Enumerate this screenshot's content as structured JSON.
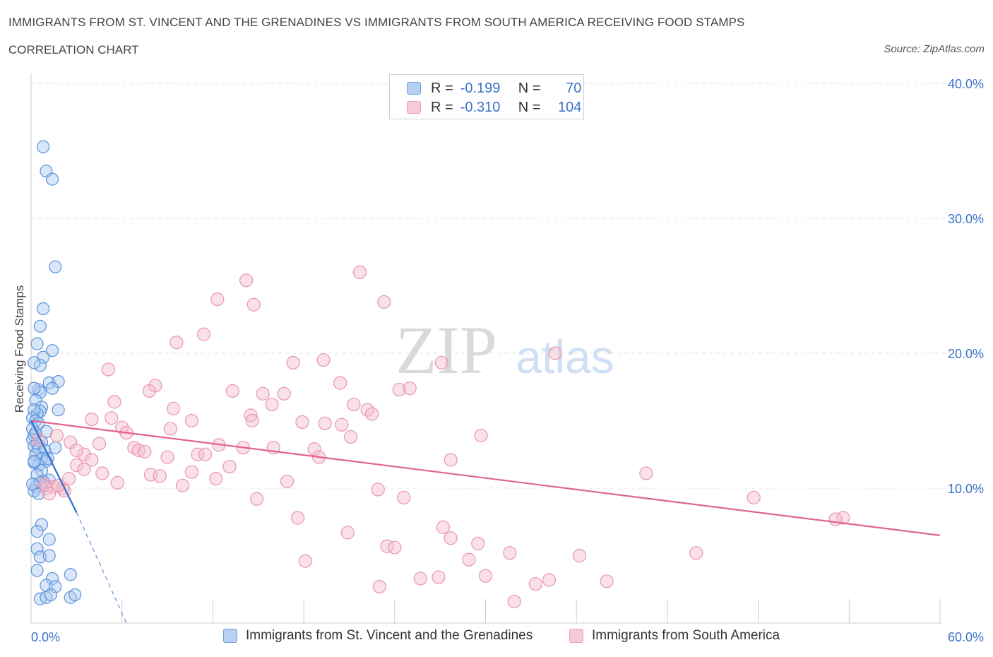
{
  "header": {
    "title": "IMMIGRANTS FROM ST. VINCENT AND THE GRENADINES VS IMMIGRANTS FROM SOUTH AMERICA RECEIVING FOOD STAMPS",
    "subtitle": "CORRELATION CHART",
    "source": "Source: ZipAtlas.com"
  },
  "legend_top": {
    "rows": [
      {
        "r_label": "R =",
        "r_value": "-0.199",
        "n_label": "N =",
        "n_value": "70"
      },
      {
        "r_label": "R =",
        "r_value": "-0.310",
        "n_label": "N =",
        "n_value": "104"
      }
    ]
  },
  "watermark": {
    "zip": "ZIP",
    "atlas": "atlas"
  },
  "colors": {
    "blue_fill": "#a9c8f0",
    "blue_stroke": "#5b93d9",
    "blue_line": "#2f6fce",
    "pink_fill": "#f5bccd",
    "pink_stroke": "#e895b0",
    "pink_line": "#e0648f",
    "axis_label": "#3a73c8",
    "grid": "#e3e3e3"
  },
  "chart_data": {
    "type": "scatter",
    "title": "IMMIGRANTS FROM ST. VINCENT AND THE GRENADINES VS IMMIGRANTS FROM SOUTH AMERICA RECEIVING FOOD STAMPS",
    "ylabel": "Receiving Food Stamps",
    "xlim": [
      0,
      60
    ],
    "ylim": [
      0,
      40
    ],
    "x_tick_labels": [
      "0.0%",
      "60.0%"
    ],
    "y_ticks": [
      10,
      20,
      30,
      40
    ],
    "y_tick_labels": [
      "10.0%",
      "20.0%",
      "30.0%",
      "40.0%"
    ],
    "grid": "horizontal dashed",
    "legend_position": "top-center and bottom",
    "series": [
      {
        "name": "Immigrants from St. Vincent and the Grenadines",
        "color": "#5b93d9",
        "R": -0.199,
        "N": 70,
        "trend": {
          "x": [
            0,
            3
          ],
          "y": [
            15.0,
            8.2
          ],
          "dashed_extension": {
            "x": [
              3,
              6.3
            ],
            "y": [
              8.2,
              0
            ]
          }
        },
        "points": [
          [
            0.8,
            35.3
          ],
          [
            1.0,
            33.5
          ],
          [
            1.4,
            32.9
          ],
          [
            1.6,
            26.4
          ],
          [
            0.8,
            23.3
          ],
          [
            0.6,
            22.0
          ],
          [
            0.4,
            20.7
          ],
          [
            1.4,
            20.2
          ],
          [
            0.8,
            19.7
          ],
          [
            0.6,
            19.1
          ],
          [
            0.2,
            19.3
          ],
          [
            0.5,
            17.3
          ],
          [
            1.2,
            17.8
          ],
          [
            1.8,
            17.9
          ],
          [
            0.6,
            17.1
          ],
          [
            1.4,
            17.4
          ],
          [
            0.2,
            17.4
          ],
          [
            0.3,
            16.5
          ],
          [
            0.7,
            16.0
          ],
          [
            0.6,
            15.7
          ],
          [
            1.8,
            15.8
          ],
          [
            0.4,
            15.5
          ],
          [
            0.2,
            15.8
          ],
          [
            0.1,
            15.2
          ],
          [
            0.3,
            15.0
          ],
          [
            0.1,
            14.4
          ],
          [
            0.5,
            14.8
          ],
          [
            1.0,
            14.2
          ],
          [
            0.2,
            13.9
          ],
          [
            0.1,
            13.6
          ],
          [
            0.4,
            13.3
          ],
          [
            0.7,
            13.4
          ],
          [
            0.2,
            13.1
          ],
          [
            0.5,
            12.9
          ],
          [
            0.9,
            12.8
          ],
          [
            1.6,
            13.0
          ],
          [
            0.3,
            12.5
          ],
          [
            0.7,
            12.2
          ],
          [
            1.0,
            12.0
          ],
          [
            0.5,
            11.7
          ],
          [
            0.2,
            11.9
          ],
          [
            1.1,
            12.2
          ],
          [
            0.7,
            11.3
          ],
          [
            0.4,
            11.0
          ],
          [
            1.2,
            10.6
          ],
          [
            0.8,
            10.5
          ],
          [
            0.3,
            10.1
          ],
          [
            0.2,
            9.8
          ],
          [
            0.5,
            9.6
          ],
          [
            0.6,
            10.4
          ],
          [
            0.1,
            10.3
          ],
          [
            0.7,
            7.3
          ],
          [
            0.4,
            6.8
          ],
          [
            1.2,
            6.2
          ],
          [
            0.4,
            5.5
          ],
          [
            0.6,
            4.9
          ],
          [
            1.2,
            5.0
          ],
          [
            0.4,
            3.9
          ],
          [
            2.6,
            3.6
          ],
          [
            1.4,
            3.3
          ],
          [
            1.0,
            2.8
          ],
          [
            1.6,
            2.7
          ],
          [
            0.6,
            1.8
          ],
          [
            1.0,
            1.9
          ],
          [
            1.3,
            2.1
          ],
          [
            2.6,
            1.9
          ],
          [
            2.9,
            2.1
          ],
          [
            0.9,
            10.2
          ],
          [
            0.3,
            14.1
          ],
          [
            0.2,
            12.0
          ]
        ]
      },
      {
        "name": "Immigrants from South America",
        "color": "#e895b0",
        "R": -0.31,
        "N": 104,
        "trend": {
          "x": [
            0,
            60
          ],
          "y": [
            15.0,
            6.5
          ]
        },
        "points": [
          [
            14.2,
            25.4
          ],
          [
            21.7,
            26.0
          ],
          [
            12.3,
            24.0
          ],
          [
            14.7,
            23.6
          ],
          [
            23.3,
            23.8
          ],
          [
            11.4,
            21.4
          ],
          [
            9.6,
            20.8
          ],
          [
            34.6,
            20.0
          ],
          [
            5.1,
            18.8
          ],
          [
            17.3,
            19.3
          ],
          [
            19.3,
            19.5
          ],
          [
            27.1,
            19.3
          ],
          [
            20.4,
            17.8
          ],
          [
            8.2,
            17.6
          ],
          [
            7.8,
            17.2
          ],
          [
            13.3,
            17.2
          ],
          [
            15.3,
            17.0
          ],
          [
            16.7,
            17.0
          ],
          [
            24.3,
            17.3
          ],
          [
            25.0,
            17.4
          ],
          [
            5.5,
            16.4
          ],
          [
            15.9,
            16.2
          ],
          [
            21.3,
            16.2
          ],
          [
            9.4,
            15.9
          ],
          [
            22.2,
            15.8
          ],
          [
            14.5,
            15.4
          ],
          [
            22.5,
            15.5
          ],
          [
            4.0,
            15.1
          ],
          [
            5.3,
            15.2
          ],
          [
            10.6,
            15.0
          ],
          [
            14.6,
            15.0
          ],
          [
            17.9,
            14.9
          ],
          [
            19.4,
            14.8
          ],
          [
            20.5,
            14.7
          ],
          [
            6.0,
            14.5
          ],
          [
            9.2,
            14.4
          ],
          [
            6.3,
            14.1
          ],
          [
            29.7,
            13.9
          ],
          [
            21.1,
            13.8
          ],
          [
            2.6,
            13.4
          ],
          [
            12.4,
            13.2
          ],
          [
            6.8,
            13.0
          ],
          [
            14.0,
            13.0
          ],
          [
            16.0,
            13.0
          ],
          [
            18.7,
            12.9
          ],
          [
            7.1,
            12.8
          ],
          [
            7.5,
            12.7
          ],
          [
            3.5,
            12.5
          ],
          [
            11.0,
            12.5
          ],
          [
            11.5,
            12.5
          ],
          [
            9.0,
            12.3
          ],
          [
            19.0,
            12.3
          ],
          [
            4.0,
            12.1
          ],
          [
            27.7,
            12.1
          ],
          [
            13.1,
            11.6
          ],
          [
            3.0,
            11.7
          ],
          [
            3.5,
            11.4
          ],
          [
            10.6,
            11.2
          ],
          [
            4.7,
            11.1
          ],
          [
            7.9,
            11.0
          ],
          [
            8.5,
            10.9
          ],
          [
            12.2,
            10.7
          ],
          [
            16.9,
            10.5
          ],
          [
            5.7,
            10.4
          ],
          [
            0.9,
            10.3
          ],
          [
            1.5,
            10.1
          ],
          [
            1.0,
            10.0
          ],
          [
            2.1,
            10.0
          ],
          [
            2.2,
            9.8
          ],
          [
            1.2,
            9.6
          ],
          [
            1.8,
            10.2
          ],
          [
            10.0,
            10.2
          ],
          [
            22.9,
            9.9
          ],
          [
            40.6,
            11.1
          ],
          [
            24.6,
            9.3
          ],
          [
            14.9,
            9.2
          ],
          [
            47.7,
            9.3
          ],
          [
            53.6,
            7.8
          ],
          [
            53.1,
            7.7
          ],
          [
            17.6,
            7.8
          ],
          [
            27.2,
            7.1
          ],
          [
            20.9,
            6.7
          ],
          [
            27.7,
            6.3
          ],
          [
            29.5,
            5.9
          ],
          [
            23.5,
            5.7
          ],
          [
            24.0,
            5.6
          ],
          [
            31.6,
            5.2
          ],
          [
            36.2,
            5.0
          ],
          [
            43.9,
            5.2
          ],
          [
            25.7,
            3.3
          ],
          [
            30.0,
            3.5
          ],
          [
            28.9,
            4.7
          ],
          [
            18.1,
            4.6
          ],
          [
            33.3,
            2.9
          ],
          [
            26.9,
            3.4
          ],
          [
            34.2,
            3.2
          ],
          [
            38.0,
            3.1
          ],
          [
            23.0,
            2.7
          ],
          [
            31.9,
            1.6
          ],
          [
            4.5,
            13.3
          ],
          [
            3.0,
            12.8
          ],
          [
            2.5,
            10.7
          ],
          [
            1.7,
            13.9
          ],
          [
            0.5,
            13.6
          ]
        ]
      }
    ]
  },
  "legend_bottom": {
    "items": [
      {
        "label": "Immigrants from St. Vincent and the Grenadines"
      },
      {
        "label": "Immigrants from South America"
      }
    ]
  }
}
